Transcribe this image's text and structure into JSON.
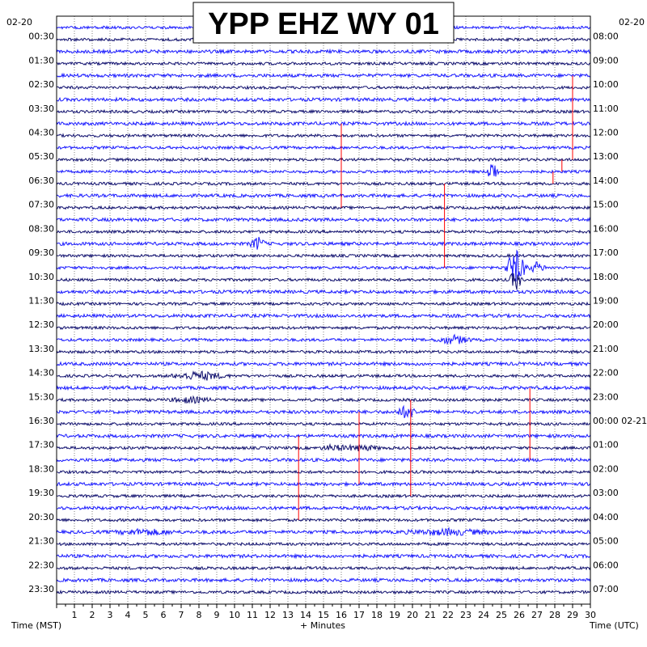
{
  "chart_data": {
    "type": "line",
    "title": "YPP EHZ WY 01",
    "left_date": "02-20",
    "right_date": "02-20",
    "left_times": [
      "00:30",
      "01:30",
      "02:30",
      "03:30",
      "04:30",
      "05:30",
      "06:30",
      "07:30",
      "08:30",
      "09:30",
      "10:30",
      "11:30",
      "12:30",
      "13:30",
      "14:30",
      "15:30",
      "16:30",
      "17:30",
      "18:30",
      "19:30",
      "20:30",
      "21:30",
      "22:30",
      "23:30"
    ],
    "right_times": [
      "08:00",
      "09:00",
      "10:00",
      "11:00",
      "12:00",
      "13:00",
      "14:00",
      "15:00",
      "16:00",
      "17:00",
      "18:00",
      "19:00",
      "20:00",
      "21:00",
      "22:00",
      "23:00",
      "00:00 02-21",
      "01:00",
      "02:00",
      "03:00",
      "04:00",
      "05:00",
      "06:00",
      "07:00"
    ],
    "x_ticks": [
      "1",
      "2",
      "3",
      "4",
      "5",
      "6",
      "7",
      "8",
      "9",
      "10",
      "11",
      "12",
      "13",
      "14",
      "15",
      "16",
      "17",
      "18",
      "19",
      "20",
      "21",
      "22",
      "23",
      "24",
      "25",
      "26",
      "27",
      "28",
      "29",
      "30"
    ],
    "xlim": [
      0,
      30
    ],
    "xlabel": "+ Minutes",
    "left_axis_label": "Time (MST)",
    "right_axis_label": "Time (UTC)",
    "trace_count": 48,
    "colors": {
      "trace_light": "#1a1aff",
      "trace_dark": "#10106e",
      "spike": "#ff0000",
      "grid": "#000000"
    }
  }
}
